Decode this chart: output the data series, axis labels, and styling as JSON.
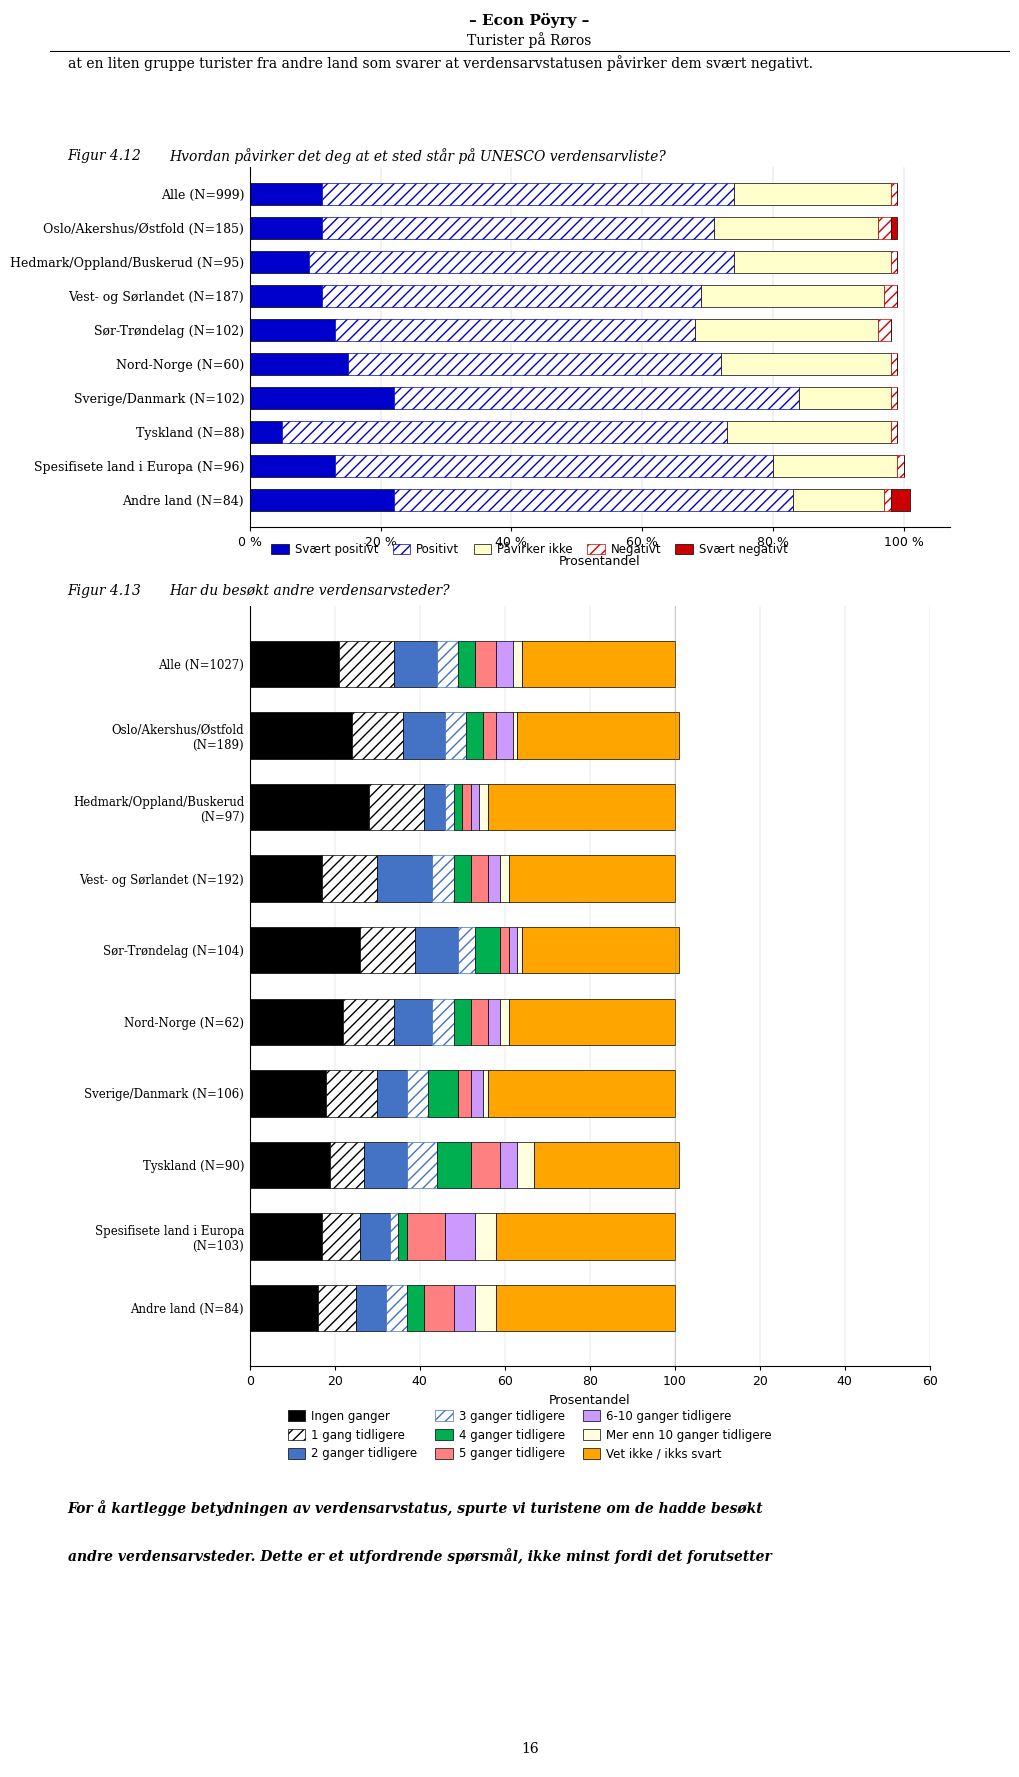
{
  "header_line1": "– Econ Pöyry –",
  "header_line2": "Turister på Røros",
  "intro_text": "at en liten gruppe turister fra andre land som svarer at verdensarvstatusen påvirker dem svært negativt.",
  "fig412_label": "Figur 4.12",
  "fig412_title": "Hvordan påvirker det deg at et sted står på UNESCO verdensarvliste?",
  "fig412_categories": [
    "Alle (N=999)",
    "Oslo/Akershus/Østfold (N=185)",
    "Hedmark/Oppland/Buskerud (N=95)",
    "Vest- og Sørlandet (N=187)",
    "Sør-Trøndelag (N=102)",
    "Nord-Norge (N=60)",
    "Sverige/Danmark (N=102)",
    "Tyskland (N=88)",
    "Spesifisete land i Europa (N=96)",
    "Andre land (N=84)"
  ],
  "fig412_data": {
    "Svært positivt": [
      11,
      11,
      9,
      11,
      13,
      15,
      22,
      5,
      13,
      22
    ],
    "Positivt": [
      63,
      60,
      65,
      58,
      55,
      57,
      62,
      68,
      67,
      61
    ],
    "Påvirker ikke": [
      24,
      25,
      24,
      28,
      28,
      26,
      14,
      25,
      19,
      14
    ],
    "Negativt": [
      1,
      2,
      1,
      2,
      2,
      1,
      1,
      1,
      1,
      1
    ],
    "Svært negativt": [
      0,
      1,
      0,
      0,
      0,
      0,
      0,
      0,
      0,
      3
    ]
  },
  "fig412_series_style": {
    "Svært positivt": {
      "fc": "#0000CC",
      "ec": "#000000",
      "hatch": ""
    },
    "Positivt": {
      "fc": "#FFFFFF",
      "ec": "#0000CC",
      "hatch": "///"
    },
    "Påvirker ikke": {
      "fc": "#FFFFCC",
      "ec": "#000000",
      "hatch": ""
    },
    "Negativt": {
      "fc": "#FFFFFF",
      "ec": "#CC0000",
      "hatch": "///"
    },
    "Svært negativt": {
      "fc": "#CC0000",
      "ec": "#000000",
      "hatch": ""
    }
  },
  "fig412_legend": [
    "Svært positivt",
    "Positivt",
    "Påvirker ikke",
    "Negativt",
    "Svært negativt"
  ],
  "fig412_xlabel": "Prosentandel",
  "fig412_xticks": [
    0,
    20,
    40,
    60,
    80,
    100
  ],
  "fig412_xticklabels": [
    "0 %",
    "20 %",
    "40 %",
    "60 %",
    "80 %",
    "100 %"
  ],
  "fig413_label": "Figur 4.13",
  "fig413_title": "Har du besøkt andre verdensarvsteder?",
  "fig413_categories": [
    "Alle (N=1027)",
    "Oslo/Akershus/Østfold\n(N=189)",
    "Hedmark/Oppland/Buskerud\n(N=97)",
    "Vest- og Sørlandet (N=192)",
    "Sør-Trøndelag (N=104)",
    "Nord-Norge (N=62)",
    "Sverige/Danmark (N=106)",
    "Tyskland (N=90)",
    "Spesifisete land i Europa\n(N=103)",
    "Andre land (N=84)"
  ],
  "fig413_data": {
    "Ingen ganger": [
      21,
      24,
      28,
      17,
      26,
      22,
      18,
      19,
      17,
      16
    ],
    "1 gang tidligere": [
      13,
      12,
      13,
      13,
      13,
      12,
      12,
      8,
      9,
      9
    ],
    "2 ganger tidligere": [
      10,
      10,
      5,
      13,
      10,
      9,
      7,
      10,
      7,
      7
    ],
    "3 ganger tidligere": [
      5,
      5,
      2,
      5,
      4,
      5,
      5,
      7,
      2,
      5
    ],
    "4 ganger tidligere": [
      4,
      4,
      2,
      4,
      6,
      4,
      7,
      8,
      2,
      4
    ],
    "5 ganger tidligere": [
      5,
      3,
      2,
      4,
      2,
      4,
      3,
      7,
      9,
      7
    ],
    "6-10 ganger tidligere": [
      4,
      4,
      2,
      3,
      2,
      3,
      3,
      4,
      7,
      5
    ],
    "Mer enn 10 ganger tidligere": [
      2,
      1,
      2,
      2,
      1,
      2,
      1,
      4,
      5,
      5
    ],
    "Vet ikke / ikks svart": [
      36,
      38,
      44,
      39,
      37,
      39,
      44,
      34,
      42,
      42
    ]
  },
  "fig413_series_style": {
    "Ingen ganger": {
      "fc": "#000000",
      "ec": "#000000",
      "hatch": ""
    },
    "1 gang tidligere": {
      "fc": "#FFFFFF",
      "ec": "#000000",
      "hatch": "///"
    },
    "2 ganger tidligere": {
      "fc": "#4472C4",
      "ec": "#000000",
      "hatch": ""
    },
    "3 ganger tidligere": {
      "fc": "#FFFFFF",
      "ec": "#4472C4",
      "hatch": "///"
    },
    "4 ganger tidligere": {
      "fc": "#00B050",
      "ec": "#000000",
      "hatch": ""
    },
    "5 ganger tidligere": {
      "fc": "#FF8080",
      "ec": "#000000",
      "hatch": ""
    },
    "6-10 ganger tidligere": {
      "fc": "#CC99FF",
      "ec": "#000000",
      "hatch": ""
    },
    "Mer enn 10 ganger tidligere": {
      "fc": "#FFFFE0",
      "ec": "#000000",
      "hatch": ""
    },
    "Vet ikke / ikks svart": {
      "fc": "#FFA500",
      "ec": "#000000",
      "hatch": ""
    }
  },
  "fig413_legend_order": [
    "Ingen ganger",
    "1 gang tidligere",
    "2 ganger tidligere",
    "3 ganger tidligere",
    "4 ganger tidligere",
    "5 ganger tidligere",
    "6-10 ganger tidligere",
    "Mer enn 10 ganger tidligere",
    "Vet ikke / ikks svart"
  ],
  "fig413_xlabel": "Prosentandel",
  "fig413_xticks": [
    0,
    20,
    40,
    60,
    80,
    100,
    120,
    140,
    160
  ],
  "fig413_xticklabels": [
    "0",
    "20",
    "40",
    "60",
    "80",
    "100",
    "20",
    "40",
    "60"
  ],
  "bottom_text1": "For å kartlegge betydningen av verdensarvstatus, spurte vi turistene om de hadde besøkt",
  "bottom_text2": "andre verdensarvsteder. Dette er et utfordrende spørsmål, ikke minst fordi det forutsetter",
  "page_number": "16"
}
